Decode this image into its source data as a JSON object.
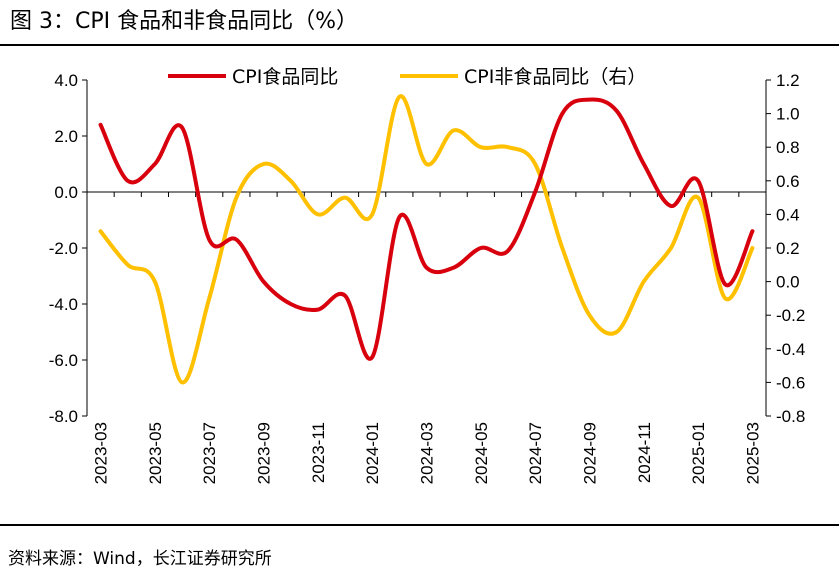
{
  "figure_title": "图 3：CPI 食品和非食品同比（%）",
  "source_note": "资料来源：Wind，长江证券研究所",
  "chart_data": {
    "type": "line",
    "x": [
      "2023-03",
      "2023-04",
      "2023-05",
      "2023-06",
      "2023-07",
      "2023-08",
      "2023-09",
      "2023-10",
      "2023-11",
      "2023-12",
      "2024-01",
      "2024-02",
      "2024-03",
      "2024-04",
      "2024-05",
      "2024-06",
      "2024-07",
      "2024-08",
      "2024-09",
      "2024-10",
      "2024-11",
      "2024-12",
      "2025-01",
      "2025-02",
      "2025-03"
    ],
    "x_tick_labels": [
      "2023-03",
      "2023-05",
      "2023-07",
      "2023-09",
      "2023-11",
      "2024-01",
      "2024-03",
      "2024-05",
      "2024-07",
      "2024-09",
      "2024-11",
      "2025-01",
      "2025-03"
    ],
    "series": [
      {
        "name": "CPI食品同比",
        "axis": "left",
        "color": "#d9000d",
        "values": [
          2.4,
          0.4,
          1.0,
          2.3,
          -1.7,
          -1.7,
          -3.2,
          -4.0,
          -4.2,
          -3.7,
          -5.9,
          -0.9,
          -2.7,
          -2.7,
          -2.0,
          -2.1,
          0.0,
          2.8,
          3.3,
          2.9,
          1.0,
          -0.5,
          0.4,
          -3.3,
          -1.4
        ]
      },
      {
        "name": "CPI非食品同比（右）",
        "axis": "right",
        "color": "#ffc000",
        "values": [
          0.3,
          0.1,
          0.0,
          -0.6,
          -0.1,
          0.5,
          0.7,
          0.6,
          0.4,
          0.5,
          0.4,
          1.1,
          0.7,
          0.9,
          0.8,
          0.8,
          0.7,
          0.2,
          -0.2,
          -0.3,
          0.0,
          0.2,
          0.5,
          -0.1,
          0.2
        ]
      }
    ],
    "left_axis": {
      "ylim": [
        -8.0,
        4.0
      ],
      "ticks": [
        "4.0",
        "2.0",
        "0.0",
        "-2.0",
        "-4.0",
        "-6.0",
        "-8.0"
      ]
    },
    "right_axis": {
      "ylim": [
        -0.8,
        1.2
      ],
      "ticks": [
        "1.2",
        "1.0",
        "0.8",
        "0.6",
        "0.4",
        "0.2",
        "0.0",
        "-0.2",
        "-0.4",
        "-0.6",
        "-0.8"
      ]
    },
    "legend_position": "top",
    "grid": false
  }
}
